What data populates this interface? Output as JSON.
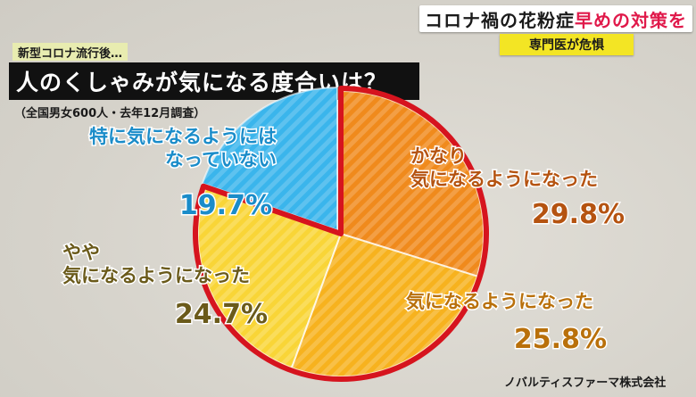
{
  "headline": {
    "main": "コロナ禍の花粉症",
    "accent": "早めの対策を",
    "sub": "専門医が危惧"
  },
  "kicker": "新型コロナ流行後…",
  "survey_note": "（全国男女600人・去年12月調査）",
  "source": "ノバルティスファーマ株式会社",
  "chart_data": {
    "type": "pie",
    "title": "人のくしゃみが気になる度合いは？",
    "start": "12 o'clock",
    "direction": "clockwise",
    "slices": [
      {
        "label_lines": [
          "かなり",
          "気になるようになった"
        ],
        "value": 29.8,
        "value_text": "29.8%",
        "color": "#f08a1c",
        "label_color": "#b55310"
      },
      {
        "label_lines": [
          "気になるようになった"
        ],
        "value": 25.8,
        "value_text": "25.8%",
        "color": "#f7b21e",
        "label_color": "#b9700b"
      },
      {
        "label_lines": [
          "やや",
          "気になるようになった"
        ],
        "value": 24.7,
        "value_text": "24.7%",
        "color": "#f9d537",
        "label_color": "#6a5a1a"
      },
      {
        "label_lines": [
          "特に気になるようには",
          "なっていない"
        ],
        "value": 19.7,
        "value_text": "19.7%",
        "color": "#3ab5ec",
        "label_color": "#1a8cc9"
      }
    ],
    "highlight_outline_color": "#d6141e"
  }
}
